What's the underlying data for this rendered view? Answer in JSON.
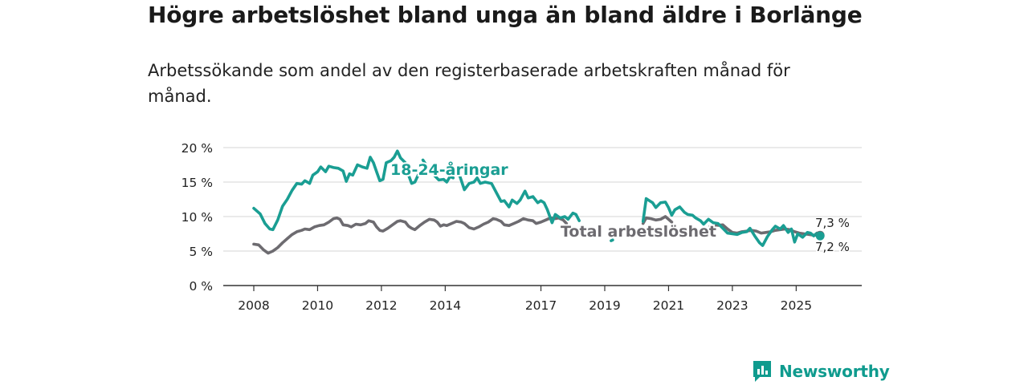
{
  "title": "Högre arbetslöshet bland unga än bland äldre i Borlänge",
  "subtitle": "Arbetssökande som andel av den registerbaserade arbetskraften månad för månad.",
  "brand": {
    "name": "Newsworthy",
    "icon": "newsworthy-logo-icon",
    "color": "#0f9b8e"
  },
  "chart_data": {
    "type": "line",
    "title": "Högre arbetslöshet bland unga än bland äldre i Borlänge",
    "xlabel": "",
    "ylabel": "",
    "x_range": [
      2008,
      2026.3
    ],
    "ylim": [
      0,
      20
    ],
    "y_ticks": [
      0,
      5,
      10,
      15,
      20
    ],
    "y_tick_labels": [
      "0 %",
      "5 %",
      "10 %",
      "15 %",
      "20 %"
    ],
    "x_ticks": [
      2008,
      2010,
      2012,
      2014,
      2017,
      2019,
      2021,
      2023,
      2025
    ],
    "x_tick_labels": [
      "2008",
      "2010",
      "2012",
      "2014",
      "2017",
      "2019",
      "2021",
      "2023",
      "2025"
    ],
    "grid": true,
    "legend": "inline labels",
    "series": [
      {
        "name": "18-24-åringar",
        "color": "#1a9e93",
        "end_label": "7,2 %",
        "segments": [
          [
            [
              2008.0,
              11.2
            ],
            [
              2008.2,
              10.4
            ],
            [
              2008.35,
              9.0
            ],
            [
              2008.5,
              8.2
            ],
            [
              2008.6,
              8.1
            ],
            [
              2008.75,
              9.5
            ],
            [
              2008.9,
              11.5
            ],
            [
              2009.05,
              12.5
            ],
            [
              2009.2,
              13.8
            ],
            [
              2009.35,
              14.8
            ],
            [
              2009.5,
              14.7
            ],
            [
              2009.6,
              15.2
            ],
            [
              2009.75,
              14.8
            ],
            [
              2009.85,
              16.0
            ],
            [
              2010.0,
              16.5
            ],
            [
              2010.1,
              17.2
            ],
            [
              2010.25,
              16.5
            ],
            [
              2010.35,
              17.3
            ],
            [
              2010.5,
              17.1
            ],
            [
              2010.65,
              17.0
            ],
            [
              2010.8,
              16.6
            ],
            [
              2010.9,
              15.1
            ],
            [
              2011.0,
              16.2
            ],
            [
              2011.1,
              16.0
            ],
            [
              2011.25,
              17.5
            ],
            [
              2011.4,
              17.2
            ],
            [
              2011.55,
              17.0
            ],
            [
              2011.65,
              18.6
            ],
            [
              2011.75,
              17.8
            ],
            [
              2011.85,
              16.5
            ],
            [
              2011.95,
              15.2
            ],
            [
              2012.05,
              15.4
            ],
            [
              2012.15,
              17.8
            ],
            [
              2012.3,
              18.1
            ],
            [
              2012.4,
              18.6
            ],
            [
              2012.5,
              19.5
            ],
            [
              2012.6,
              18.5
            ],
            [
              2012.75,
              17.8
            ],
            [
              2012.85,
              16.0
            ],
            [
              2012.95,
              14.8
            ],
            [
              2013.05,
              15.0
            ],
            [
              2013.15,
              16.0
            ]
          ],
          [
            [
              2013.3,
              18.2
            ],
            [
              2013.4,
              17.5
            ]
          ],
          [
            [
              2013.65,
              16.0
            ],
            [
              2013.8,
              15.3
            ],
            [
              2013.95,
              15.4
            ],
            [
              2014.05,
              15.0
            ],
            [
              2014.15,
              15.8
            ],
            [
              2014.25,
              15.6
            ]
          ],
          [
            [
              2014.45,
              16.0
            ],
            [
              2014.6,
              13.9
            ],
            [
              2014.75,
              14.8
            ],
            [
              2014.9,
              15.0
            ],
            [
              2015.0,
              15.6
            ],
            [
              2015.1,
              14.8
            ],
            [
              2015.25,
              15.0
            ],
            [
              2015.45,
              14.8
            ],
            [
              2015.6,
              13.5
            ],
            [
              2015.75,
              12.2
            ],
            [
              2015.85,
              12.3
            ],
            [
              2016.0,
              11.4
            ],
            [
              2016.1,
              12.4
            ],
            [
              2016.25,
              11.9
            ],
            [
              2016.35,
              12.4
            ],
            [
              2016.5,
              13.7
            ],
            [
              2016.6,
              12.7
            ],
            [
              2016.75,
              12.9
            ],
            [
              2016.9,
              12.0
            ],
            [
              2017.0,
              12.3
            ],
            [
              2017.1,
              12.0
            ],
            [
              2017.2,
              11.0
            ],
            [
              2017.35,
              9.1
            ],
            [
              2017.45,
              10.3
            ],
            [
              2017.6,
              9.8
            ],
            [
              2017.75,
              10.0
            ],
            [
              2017.85,
              9.6
            ],
            [
              2018.0,
              10.5
            ],
            [
              2018.1,
              10.3
            ],
            [
              2018.2,
              9.4
            ]
          ],
          [
            [
              2019.2,
              6.5
            ],
            [
              2019.25,
              6.6
            ]
          ],
          [
            [
              2020.2,
              9.3
            ],
            [
              2020.3,
              12.6
            ],
            [
              2020.4,
              12.3
            ],
            [
              2020.5,
              12.0
            ],
            [
              2020.6,
              11.3
            ],
            [
              2020.75,
              12.0
            ],
            [
              2020.9,
              12.1
            ],
            [
              2021.0,
              11.3
            ],
            [
              2021.1,
              10.2
            ],
            [
              2021.2,
              11.0
            ],
            [
              2021.35,
              11.4
            ],
            [
              2021.5,
              10.6
            ],
            [
              2021.6,
              10.3
            ],
            [
              2021.75,
              10.2
            ],
            [
              2021.85,
              9.8
            ],
            [
              2022.0,
              9.4
            ],
            [
              2022.1,
              8.9
            ],
            [
              2022.25,
              9.6
            ],
            [
              2022.4,
              9.1
            ],
            [
              2022.55,
              9.0
            ],
            [
              2022.7,
              8.3
            ],
            [
              2022.85,
              7.6
            ],
            [
              2023.0,
              7.5
            ],
            [
              2023.15,
              7.4
            ],
            [
              2023.3,
              7.7
            ],
            [
              2023.45,
              7.8
            ],
            [
              2023.55,
              8.3
            ],
            [
              2023.7,
              7.2
            ],
            [
              2023.85,
              6.2
            ],
            [
              2023.95,
              5.8
            ],
            [
              2024.1,
              7.1
            ],
            [
              2024.25,
              8.1
            ],
            [
              2024.35,
              8.6
            ],
            [
              2024.5,
              8.2
            ],
            [
              2024.6,
              8.7
            ],
            [
              2024.75,
              7.7
            ],
            [
              2024.85,
              8.2
            ],
            [
              2024.95,
              6.3
            ],
            [
              2025.05,
              7.5
            ],
            [
              2025.2,
              7.0
            ],
            [
              2025.35,
              7.7
            ],
            [
              2025.45,
              7.6
            ],
            [
              2025.55,
              7.2
            ],
            [
              2025.65,
              7.6
            ],
            [
              2025.75,
              7.2
            ]
          ]
        ]
      },
      {
        "name": "Total arbetslöshet",
        "color": "#6d6b70",
        "end_label": "7,3 %",
        "segments": [
          [
            [
              2008.0,
              6.0
            ],
            [
              2008.15,
              5.9
            ],
            [
              2008.3,
              5.2
            ],
            [
              2008.45,
              4.7
            ],
            [
              2008.6,
              5.0
            ],
            [
              2008.75,
              5.5
            ],
            [
              2008.9,
              6.2
            ],
            [
              2009.05,
              6.8
            ],
            [
              2009.2,
              7.4
            ],
            [
              2009.35,
              7.8
            ],
            [
              2009.5,
              8.0
            ],
            [
              2009.6,
              8.2
            ],
            [
              2009.75,
              8.1
            ],
            [
              2009.9,
              8.5
            ],
            [
              2010.05,
              8.7
            ],
            [
              2010.2,
              8.8
            ],
            [
              2010.35,
              9.2
            ],
            [
              2010.5,
              9.7
            ],
            [
              2010.6,
              9.8
            ],
            [
              2010.7,
              9.6
            ],
            [
              2010.8,
              8.8
            ],
            [
              2010.95,
              8.7
            ],
            [
              2011.05,
              8.5
            ],
            [
              2011.2,
              8.9
            ],
            [
              2011.35,
              8.8
            ],
            [
              2011.5,
              9.0
            ],
            [
              2011.6,
              9.4
            ],
            [
              2011.75,
              9.2
            ],
            [
              2011.85,
              8.5
            ],
            [
              2011.95,
              8.0
            ],
            [
              2012.05,
              7.9
            ],
            [
              2012.2,
              8.3
            ],
            [
              2012.35,
              8.8
            ],
            [
              2012.5,
              9.3
            ],
            [
              2012.6,
              9.4
            ],
            [
              2012.75,
              9.2
            ],
            [
              2012.85,
              8.6
            ],
            [
              2012.95,
              8.3
            ],
            [
              2013.05,
              8.1
            ],
            [
              2013.2,
              8.7
            ],
            [
              2013.35,
              9.2
            ],
            [
              2013.5,
              9.6
            ],
            [
              2013.65,
              9.5
            ],
            [
              2013.75,
              9.2
            ],
            [
              2013.85,
              8.6
            ],
            [
              2013.95,
              8.8
            ],
            [
              2014.05,
              8.7
            ],
            [
              2014.2,
              9.0
            ],
            [
              2014.35,
              9.3
            ],
            [
              2014.5,
              9.2
            ],
            [
              2014.6,
              9.0
            ],
            [
              2014.75,
              8.4
            ],
            [
              2014.9,
              8.2
            ],
            [
              2015.05,
              8.5
            ],
            [
              2015.2,
              8.9
            ],
            [
              2015.35,
              9.2
            ],
            [
              2015.5,
              9.7
            ],
            [
              2015.6,
              9.6
            ],
            [
              2015.75,
              9.3
            ],
            [
              2015.85,
              8.8
            ],
            [
              2016.0,
              8.7
            ],
            [
              2016.15,
              9.0
            ],
            [
              2016.3,
              9.3
            ],
            [
              2016.45,
              9.7
            ],
            [
              2016.6,
              9.5
            ],
            [
              2016.75,
              9.4
            ],
            [
              2016.85,
              9.0
            ],
            [
              2017.0,
              9.2
            ],
            [
              2017.15,
              9.5
            ],
            [
              2017.3,
              9.8
            ],
            [
              2017.45,
              9.7
            ],
            [
              2017.55,
              9.8
            ],
            [
              2017.7,
              9.5
            ],
            [
              2017.8,
              9.0
            ]
          ],
          [
            [
              2020.2,
              9.0
            ],
            [
              2020.3,
              9.8
            ],
            [
              2020.45,
              9.7
            ],
            [
              2020.6,
              9.5
            ],
            [
              2020.75,
              9.6
            ],
            [
              2020.9,
              10.0
            ],
            [
              2021.0,
              9.6
            ],
            [
              2021.1,
              9.2
            ]
          ],
          [
            [
              2022.3,
              8.6
            ],
            [
              2022.5,
              8.7
            ],
            [
              2022.7,
              8.8
            ],
            [
              2022.85,
              8.2
            ],
            [
              2023.0,
              7.7
            ],
            [
              2023.15,
              7.6
            ],
            [
              2023.3,
              7.8
            ],
            [
              2023.45,
              7.9
            ],
            [
              2023.6,
              8.0
            ],
            [
              2023.75,
              7.9
            ],
            [
              2023.9,
              7.6
            ],
            [
              2024.05,
              7.7
            ],
            [
              2024.2,
              7.8
            ],
            [
              2024.35,
              8.0
            ],
            [
              2024.5,
              8.1
            ],
            [
              2024.65,
              8.2
            ],
            [
              2024.8,
              8.1
            ],
            [
              2024.95,
              7.8
            ],
            [
              2025.1,
              7.6
            ],
            [
              2025.25,
              7.5
            ],
            [
              2025.4,
              7.4
            ],
            [
              2025.55,
              7.3
            ],
            [
              2025.75,
              7.3
            ]
          ]
        ]
      }
    ],
    "annotations": [
      "18-24-åringar",
      "Total arbetslöshet",
      "7,3 %",
      "7,2 %"
    ]
  }
}
